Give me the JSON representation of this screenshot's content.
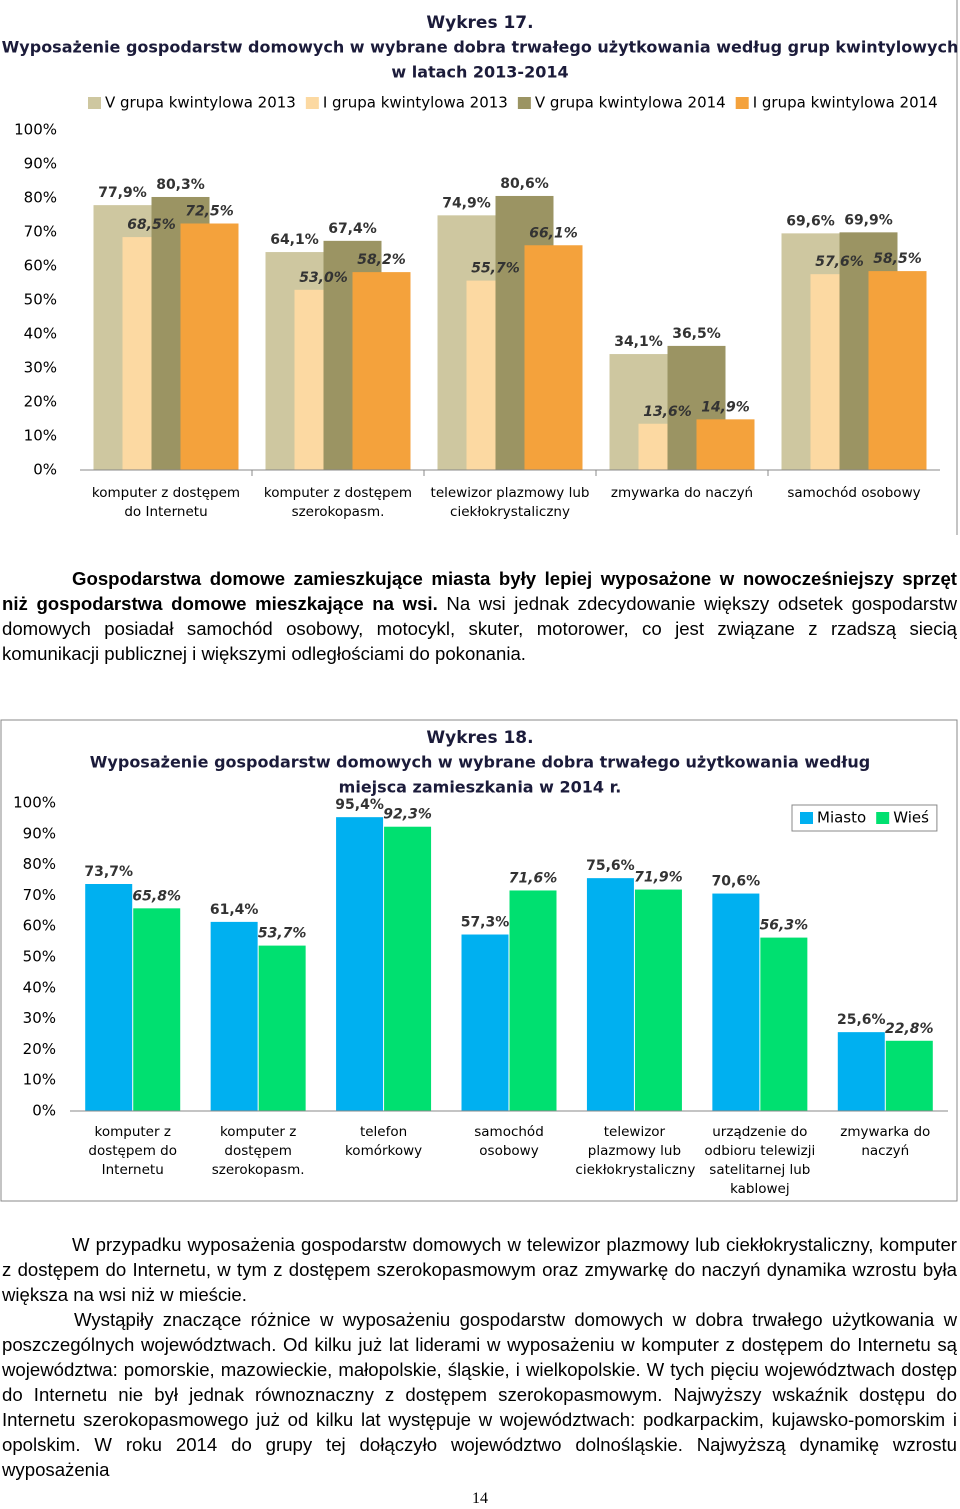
{
  "chart_data": [
    {
      "type": "bar",
      "title": "Wykres 17.",
      "subtitle": [
        "Wyposażenie gospodarstw domowych w wybrane dobra trwałego użytkowania według grup kwintylowych",
        "w latach 2013-2014"
      ],
      "categories": [
        "komputer z dostępem do Internetu",
        "komputer z dostępem szerokopasm.",
        "telewizor plazmowy lub ciekłokrystaliczny",
        "zmywarka do naczyń",
        "samochód osobowy"
      ],
      "series": [
        {
          "name": "V grupa kwintylowa 2013",
          "color": "#cec7a0",
          "values": [
            77.9,
            64.1,
            74.9,
            34.1,
            69.6
          ],
          "value_labels": [
            "77,9%",
            "64,1%",
            "74,9%",
            "34,1%",
            "69,6%"
          ]
        },
        {
          "name": "I grupa kwintylowa 2013",
          "color": "#fcd9a2",
          "values": [
            68.5,
            53.0,
            55.7,
            13.6,
            57.6
          ],
          "value_labels": [
            "68,5%",
            "53,0%",
            "55,7%",
            "13,6%",
            "57,6%"
          ]
        },
        {
          "name": "V grupa kwintylowa 2014",
          "color": "#9b9463",
          "values": [
            80.3,
            67.4,
            80.6,
            36.5,
            69.9
          ],
          "value_labels": [
            "80,3%",
            "67,4%",
            "80,6%",
            "36,5%",
            "69,9%"
          ]
        },
        {
          "name": "I grupa kwintylowa 2014",
          "color": "#f4a23c",
          "values": [
            72.5,
            58.2,
            66.1,
            14.9,
            58.5
          ],
          "value_labels": [
            "72,5%",
            "58,2%",
            "66,1%",
            "14,9%",
            "58,5%"
          ]
        }
      ],
      "ylim": [
        0,
        100
      ],
      "yticks": [
        {
          "value": 0,
          "label": "0%"
        },
        {
          "value": 10,
          "label": "10%"
        },
        {
          "value": 20,
          "label": "20%"
        },
        {
          "value": 30,
          "label": "30%"
        },
        {
          "value": 40,
          "label": "40%"
        },
        {
          "value": 50,
          "label": "50%"
        },
        {
          "value": 60,
          "label": "60%"
        },
        {
          "value": 70,
          "label": "70%"
        },
        {
          "value": 80,
          "label": "80%"
        },
        {
          "value": 90,
          "label": "90%"
        },
        {
          "value": 100,
          "label": "100%"
        }
      ],
      "grid": false,
      "legend": "top"
    },
    {
      "type": "bar",
      "title": "Wykres 18.",
      "subtitle": [
        "Wyposażenie gospodarstw domowych w wybrane dobra trwałego użytkowania według",
        "miejsca zamieszkania w 2014 r."
      ],
      "categories": [
        "komputer z dostępem do Internetu",
        "komputer z dostępem szerokopasm.",
        "telefon komórkowy",
        "samochód osobowy",
        "telewizor plazmowy lub ciekłokrystaliczny",
        "urządzenie do odbioru telewizji satelitarnej lub kablowej",
        "zmywarka do naczyń"
      ],
      "series": [
        {
          "name": "Miasto",
          "color": "#00b0f0",
          "values": [
            73.7,
            61.4,
            95.4,
            57.3,
            75.6,
            70.6,
            25.6
          ],
          "value_labels": [
            "73,7%",
            "61,4%",
            "95,4%",
            "57,3%",
            "75,6%",
            "70,6%",
            "25,6%"
          ]
        },
        {
          "name": "Wieś",
          "color": "#00e070",
          "values": [
            65.8,
            53.7,
            92.3,
            71.6,
            71.9,
            56.3,
            22.8
          ],
          "value_labels": [
            "65,8%",
            "53,7%",
            "92,3%",
            "71,6%",
            "71,9%",
            "56,3%",
            "22,8%"
          ]
        }
      ],
      "ylim": [
        0,
        100
      ],
      "yticks": [
        {
          "value": 0,
          "label": "0%"
        },
        {
          "value": 10,
          "label": "10%"
        },
        {
          "value": 20,
          "label": "20%"
        },
        {
          "value": 30,
          "label": "30%"
        },
        {
          "value": 40,
          "label": "40%"
        },
        {
          "value": 50,
          "label": "50%"
        },
        {
          "value": 60,
          "label": "60%"
        },
        {
          "value": 70,
          "label": "70%"
        },
        {
          "value": 80,
          "label": "80%"
        },
        {
          "value": 90,
          "label": "90%"
        },
        {
          "value": 100,
          "label": "100%"
        }
      ],
      "grid": false,
      "legend": "top-right"
    }
  ],
  "paragraphs": [
    {
      "bold": "Gospodarstwa domowe zamieszkujące miasta były lepiej wyposażone w nowocześniejszy sprzęt niż gospodarstwa domowe mieszkające na wsi.",
      "text": "Na wsi jednak zdecydowanie większy odsetek gospodarstw domowych posiadał samochód osobowy, motocykl, skuter, motorower, co jest związane z rzadszą siecią komunikacji publicznej i większymi odległościami do pokonania."
    },
    {
      "text": "W przypadku wyposażenia gospodarstw domowych w telewizor plazmowy lub ciekłokrystaliczny, komputer z dostępem do Internetu, w tym z dostępem szerokopasmowym oraz zmywarkę do naczyń dynamika wzrostu była większa na wsi niż w mieście."
    },
    {
      "text": "Wystąpiły znaczące różnice w wyposażeniu gospodarstw domowych w dobra trwałego użytkowania w poszczególnych województwach. Od kilku już lat liderami w wyposażeniu w komputer z dostępem do Internetu są województwa: pomorskie, mazowieckie, małopolskie, śląskie, i wielkopolskie. W tych pięciu województwach dostęp do Internetu nie był jednak równoznaczny z dostępem szerokopasmowym. Najwyższy wskaźnik dostępu do Internetu szerokopasmowego już od kilku lat występuje w województwach: podkarpackim, kujawsko-pomorskim i opolskim. W roku 2014 do grupy tej dołączyło województwo dolnośląskie. Najwyższą dynamikę wzrostu wyposażenia"
    }
  ],
  "page_number": "14"
}
